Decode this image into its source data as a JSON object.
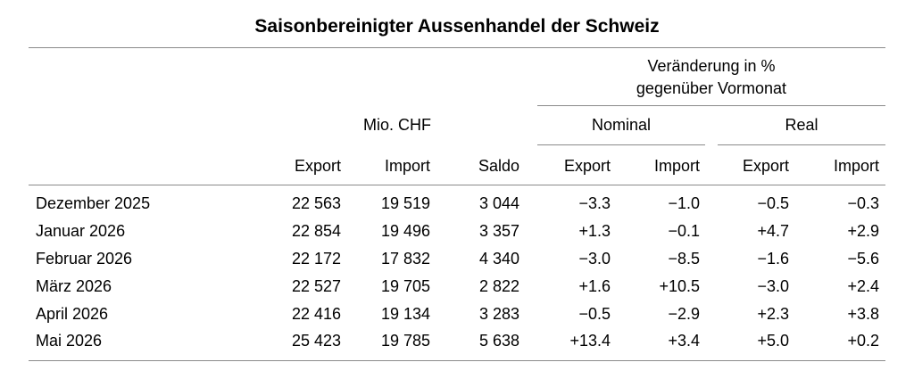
{
  "title": "Saisonbereinigter Aussenhandel der Schweiz",
  "header": {
    "change_group_line1": "Veränderung in %",
    "change_group_line2": "gegenüber Vormonat",
    "mio_chf": "Mio. CHF",
    "nominal": "Nominal",
    "real": "Real",
    "columns": [
      "Export",
      "Import",
      "Saldo",
      "Export",
      "Import",
      "Export",
      "Import"
    ]
  },
  "rows": [
    {
      "month": "Dezember 2025",
      "values": [
        "22 563",
        "19 519",
        "3 044",
        "−3.3",
        "−1.0",
        "−0.5",
        "−0.3"
      ]
    },
    {
      "month": "Januar 2026",
      "values": [
        "22 854",
        "19 496",
        "3 357",
        "+1.3",
        "−0.1",
        "+4.7",
        "+2.9"
      ]
    },
    {
      "month": "Februar 2026",
      "values": [
        "22 172",
        "17 832",
        "4 340",
        "−3.0",
        "−8.5",
        "−1.6",
        "−5.6"
      ]
    },
    {
      "month": "März 2026",
      "values": [
        "22 527",
        "19 705",
        "2 822",
        "+1.6",
        "+10.5",
        "−3.0",
        "+2.4"
      ]
    },
    {
      "month": "April 2026",
      "values": [
        "22 416",
        "19 134",
        "3 283",
        "−0.5",
        "−2.9",
        "+2.3",
        "+3.8"
      ]
    },
    {
      "month": "Mai 2026",
      "values": [
        "25 423",
        "19 785",
        "5 638",
        "+13.4",
        "+3.4",
        "+5.0",
        "+0.2"
      ]
    }
  ]
}
